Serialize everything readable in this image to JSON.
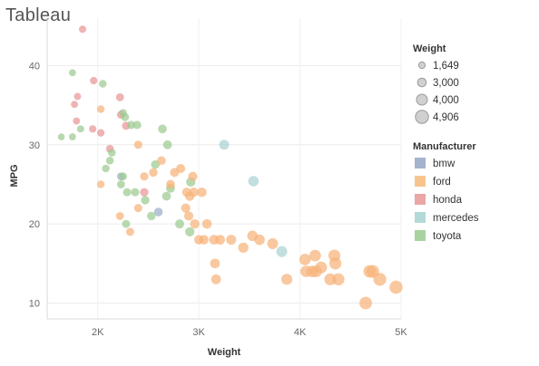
{
  "app": {
    "title": "Tableau"
  },
  "chart_data": {
    "type": "scatter",
    "xlabel": "Weight",
    "ylabel": "MPG",
    "xlim": [
      1500,
      5000
    ],
    "ylim": [
      8,
      46
    ],
    "x_ticks": [
      {
        "value": 2000,
        "label": "2K"
      },
      {
        "value": 3000,
        "label": "3K"
      },
      {
        "value": 4000,
        "label": "4K"
      },
      {
        "value": 5000,
        "label": "5K"
      }
    ],
    "y_ticks": [
      {
        "value": 10,
        "label": "10"
      },
      {
        "value": 20,
        "label": "20"
      },
      {
        "value": 30,
        "label": "30"
      },
      {
        "value": 40,
        "label": "40"
      }
    ],
    "size_legend": {
      "title": "Weight",
      "entries": [
        {
          "label": "1,649",
          "value": 1649
        },
        {
          "label": "3,000",
          "value": 3000
        },
        {
          "label": "4,000",
          "value": 4000
        },
        {
          "label": "4,906",
          "value": 4906
        }
      ]
    },
    "color_legend": {
      "title": "Manufacturer",
      "entries": [
        {
          "label": "bmw",
          "color": "#a3b4cc"
        },
        {
          "label": "ford",
          "color": "#f8c48e"
        },
        {
          "label": "honda",
          "color": "#eba6a6"
        },
        {
          "label": "mercedes",
          "color": "#b4dad8"
        },
        {
          "label": "toyota",
          "color": "#a9d2a1"
        }
      ]
    },
    "series": [
      {
        "name": "bmw",
        "color": "#9aaec9",
        "points": [
          [
            2230,
            26
          ],
          [
            2600,
            21.5
          ]
        ]
      },
      {
        "name": "mercedes",
        "color": "#a9d3d1",
        "points": [
          [
            3250,
            30
          ],
          [
            3540,
            25.4
          ],
          [
            3820,
            16.5
          ]
        ]
      },
      {
        "name": "honda",
        "color": "#e99595",
        "points": [
          [
            1850,
            44.6
          ],
          [
            1800,
            36.1
          ],
          [
            1770,
            35.1
          ],
          [
            1960,
            38.1
          ],
          [
            1790,
            33
          ],
          [
            1950,
            32
          ],
          [
            2030,
            31.5
          ],
          [
            2220,
            36
          ],
          [
            2230,
            33.8
          ],
          [
            2280,
            32.4
          ],
          [
            2120,
            29.5
          ],
          [
            2460,
            24
          ]
        ]
      },
      {
        "name": "toyota",
        "color": "#9ccb92",
        "points": [
          [
            1750,
            39.1
          ],
          [
            2050,
            37.7
          ],
          [
            1640,
            31
          ],
          [
            1750,
            31
          ],
          [
            1830,
            32
          ],
          [
            2120,
            28
          ],
          [
            2140,
            29
          ],
          [
            2270,
            33.5
          ],
          [
            2250,
            34
          ],
          [
            2330,
            32.5
          ],
          [
            2390,
            32.5
          ],
          [
            2080,
            27
          ],
          [
            2230,
            25
          ],
          [
            2250,
            26
          ],
          [
            2290,
            24
          ],
          [
            2370,
            24
          ],
          [
            2280,
            20
          ],
          [
            2470,
            23
          ],
          [
            2570,
            27.5
          ],
          [
            2530,
            21
          ],
          [
            2640,
            32
          ],
          [
            2690,
            30
          ],
          [
            2680,
            23.5
          ],
          [
            2720,
            24.5
          ],
          [
            2810,
            20
          ],
          [
            2920,
            25.3
          ],
          [
            2910,
            19
          ]
        ]
      },
      {
        "name": "ford",
        "color": "#f6b37a",
        "points": [
          [
            2030,
            34.5
          ],
          [
            2030,
            25
          ],
          [
            2220,
            21
          ],
          [
            2320,
            19
          ],
          [
            2400,
            22
          ],
          [
            2400,
            30
          ],
          [
            2460,
            26
          ],
          [
            2550,
            26.5
          ],
          [
            2630,
            28
          ],
          [
            2720,
            25
          ],
          [
            2760,
            26.5
          ],
          [
            2820,
            27
          ],
          [
            2870,
            22
          ],
          [
            2900,
            21
          ],
          [
            2880,
            24
          ],
          [
            2910,
            23.5
          ],
          [
            2940,
            26
          ],
          [
            2950,
            24
          ],
          [
            2960,
            20
          ],
          [
            3000,
            18
          ],
          [
            3030,
            24
          ],
          [
            3050,
            18
          ],
          [
            3080,
            20
          ],
          [
            3150,
            18
          ],
          [
            3160,
            15
          ],
          [
            3170,
            13
          ],
          [
            3210,
            18
          ],
          [
            3320,
            18
          ],
          [
            3440,
            17
          ],
          [
            3530,
            18.5
          ],
          [
            3600,
            18
          ],
          [
            3730,
            17.5
          ],
          [
            3870,
            13
          ],
          [
            4050,
            15.5
          ],
          [
            4060,
            14
          ],
          [
            4120,
            14
          ],
          [
            4150,
            16
          ],
          [
            4160,
            14
          ],
          [
            4210,
            14.5
          ],
          [
            4300,
            13
          ],
          [
            4340,
            16
          ],
          [
            4350,
            15
          ],
          [
            4380,
            13
          ],
          [
            4650,
            10
          ],
          [
            4690,
            14
          ],
          [
            4720,
            14
          ],
          [
            4790,
            13
          ],
          [
            4950,
            12
          ]
        ]
      }
    ]
  }
}
